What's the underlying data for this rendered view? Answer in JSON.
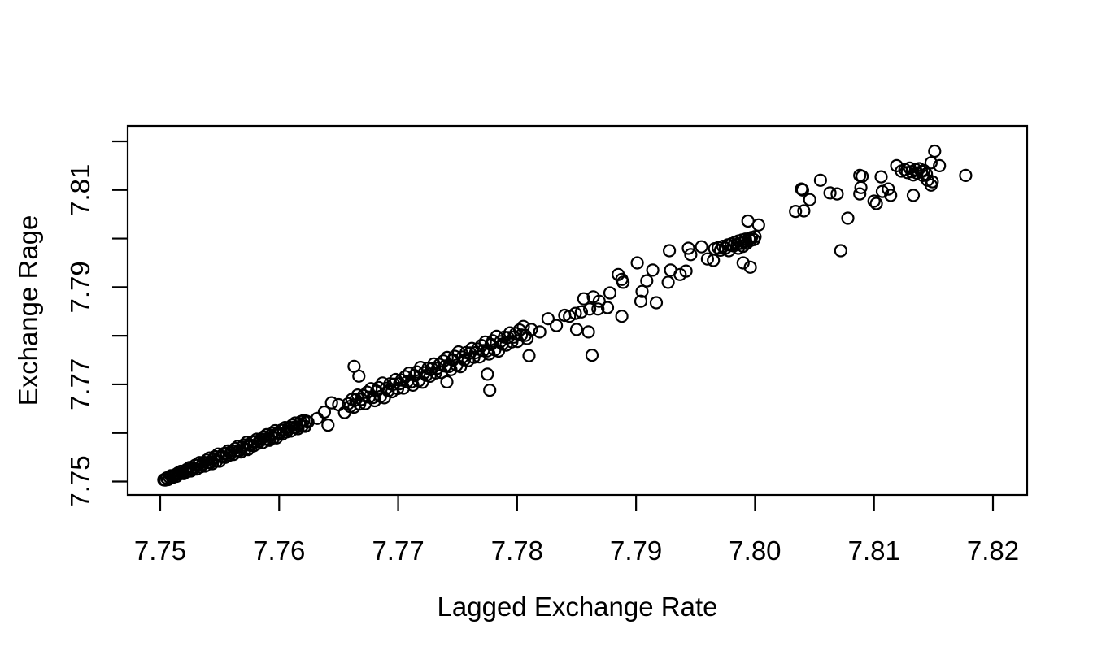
{
  "figure": {
    "background": "#ffffff",
    "foreground": "#000000"
  },
  "chart_data": {
    "type": "scatter",
    "title": "",
    "xlabel": "Lagged Exchange Rate",
    "ylabel": "Exchange Rage",
    "x_ticks": [
      7.75,
      7.76,
      7.77,
      7.78,
      7.79,
      7.8,
      7.81,
      7.82
    ],
    "x_tick_labels": [
      "7.75",
      "7.76",
      "7.77",
      "7.78",
      "7.79",
      "7.80",
      "7.81",
      "7.82"
    ],
    "y_ticks": [
      7.75,
      7.76,
      7.77,
      7.78,
      7.79,
      7.8,
      7.81,
      7.82
    ],
    "y_tick_labels": [
      "7.75",
      "",
      "7.77",
      "",
      "7.79",
      "",
      "7.81",
      ""
    ],
    "xlim": [
      7.7473,
      7.8229
    ],
    "ylim": [
      7.7472,
      7.8232
    ],
    "grid": false,
    "legend": null,
    "marker": {
      "shape": "open-circle",
      "color": "#000000",
      "radius_px": 7,
      "stroke_px": 2.2
    },
    "points": [
      [
        7.7503,
        7.75035
      ],
      [
        7.75042,
        7.75032
      ],
      [
        7.75054,
        7.75074
      ],
      [
        7.75066,
        7.75041
      ],
      [
        7.75078,
        7.75088
      ],
      [
        7.7509,
        7.7512
      ],
      [
        7.75102,
        7.75082
      ],
      [
        7.75114,
        7.75114
      ],
      [
        7.75126,
        7.75141
      ],
      [
        7.75138,
        7.75108
      ],
      [
        7.7515,
        7.75175
      ],
      [
        7.75162,
        7.75157
      ],
      [
        7.75174,
        7.75209
      ],
      [
        7.75186,
        7.75171
      ],
      [
        7.75198,
        7.75163
      ],
      [
        7.7521,
        7.7522
      ],
      [
        7.75222,
        7.75247
      ],
      [
        7.75234,
        7.75209
      ],
      [
        7.75246,
        7.75286
      ],
      [
        7.75258,
        7.75218
      ],
      [
        7.7527,
        7.7528
      ],
      [
        7.75282,
        7.75262
      ],
      [
        7.75294,
        7.75334
      ],
      [
        7.75306,
        7.75256
      ],
      [
        7.75318,
        7.75338
      ],
      [
        7.7533,
        7.7539
      ],
      [
        7.75342,
        7.75302
      ],
      [
        7.75354,
        7.75354
      ],
      [
        7.75366,
        7.75396
      ],
      [
        7.75378,
        7.75318
      ],
      [
        7.7539,
        7.7544
      ],
      [
        7.75402,
        7.75392
      ],
      [
        7.75414,
        7.75484
      ],
      [
        7.75426,
        7.75396
      ],
      [
        7.75438,
        7.75368
      ],
      [
        7.7545,
        7.7547
      ],
      [
        7.75462,
        7.75512
      ],
      [
        7.75474,
        7.75424
      ],
      [
        7.75486,
        7.75566
      ],
      [
        7.75498,
        7.75418
      ],
      [
        7.7551,
        7.7552
      ],
      [
        7.75522,
        7.75502
      ],
      [
        7.75534,
        7.75574
      ],
      [
        7.75546,
        7.75496
      ],
      [
        7.75558,
        7.75578
      ],
      [
        7.7557,
        7.7563
      ],
      [
        7.75582,
        7.75542
      ],
      [
        7.75594,
        7.75594
      ],
      [
        7.75606,
        7.75636
      ],
      [
        7.75618,
        7.75558
      ],
      [
        7.7563,
        7.7568
      ],
      [
        7.75642,
        7.75632
      ],
      [
        7.75654,
        7.75724
      ],
      [
        7.75666,
        7.75636
      ],
      [
        7.75678,
        7.75608
      ],
      [
        7.7569,
        7.7571
      ],
      [
        7.75702,
        7.75752
      ],
      [
        7.75714,
        7.75664
      ],
      [
        7.75726,
        7.75806
      ],
      [
        7.75738,
        7.75658
      ],
      [
        7.7575,
        7.7576
      ],
      [
        7.75762,
        7.75742
      ],
      [
        7.75774,
        7.75814
      ],
      [
        7.75786,
        7.75736
      ],
      [
        7.75798,
        7.75818
      ],
      [
        7.7581,
        7.7587
      ],
      [
        7.75822,
        7.75782
      ],
      [
        7.75834,
        7.75834
      ],
      [
        7.75846,
        7.75876
      ],
      [
        7.75858,
        7.75798
      ],
      [
        7.7587,
        7.7592
      ],
      [
        7.75882,
        7.75872
      ],
      [
        7.75894,
        7.75964
      ],
      [
        7.75906,
        7.75876
      ],
      [
        7.75918,
        7.75848
      ],
      [
        7.7593,
        7.7595
      ],
      [
        7.75942,
        7.75992
      ],
      [
        7.75954,
        7.75904
      ],
      [
        7.75966,
        7.76046
      ],
      [
        7.75978,
        7.75898
      ],
      [
        7.7599,
        7.76
      ],
      [
        7.76002,
        7.75982
      ],
      [
        7.76014,
        7.76054
      ],
      [
        7.76026,
        7.75976
      ],
      [
        7.76038,
        7.76058
      ],
      [
        7.7605,
        7.7611
      ],
      [
        7.76062,
        7.76022
      ],
      [
        7.76074,
        7.76074
      ],
      [
        7.76086,
        7.76116
      ],
      [
        7.76098,
        7.76038
      ],
      [
        7.7611,
        7.7616
      ],
      [
        7.76122,
        7.76112
      ],
      [
        7.76134,
        7.76204
      ],
      [
        7.76146,
        7.76116
      ],
      [
        7.76158,
        7.76088
      ],
      [
        7.7617,
        7.7619
      ],
      [
        7.76182,
        7.76232
      ],
      [
        7.76194,
        7.76144
      ],
      [
        7.76206,
        7.76256
      ],
      [
        7.76218,
        7.76138
      ],
      [
        7.7623,
        7.7624
      ],
      [
        7.76242,
        7.76222
      ],
      [
        7.7632,
        7.763
      ],
      [
        7.7638,
        7.7643
      ],
      [
        7.7641,
        7.7616
      ],
      [
        7.7644,
        7.7662
      ],
      [
        7.765,
        7.7658
      ],
      [
        7.7655,
        7.7642
      ],
      [
        7.7658,
        7.766
      ],
      [
        7.76596,
        7.76546
      ],
      [
        7.76612,
        7.76692
      ],
      [
        7.76628,
        7.76528
      ],
      [
        7.76644,
        7.76684
      ],
      [
        7.7666,
        7.7678
      ],
      [
        7.76676,
        7.76596
      ],
      [
        7.76692,
        7.76692
      ],
      [
        7.76708,
        7.76768
      ],
      [
        7.76724,
        7.76604
      ],
      [
        7.7674,
        7.7684
      ],
      [
        7.76756,
        7.76736
      ],
      [
        7.76772,
        7.76912
      ],
      [
        7.76788,
        7.76728
      ],
      [
        7.76804,
        7.76664
      ],
      [
        7.7682,
        7.7686
      ],
      [
        7.76836,
        7.76936
      ],
      [
        7.76852,
        7.76752
      ],
      [
        7.76868,
        7.77028
      ],
      [
        7.76884,
        7.76724
      ],
      [
        7.769,
        7.7692
      ],
      [
        7.76916,
        7.76866
      ],
      [
        7.76932,
        7.77012
      ],
      [
        7.76948,
        7.76848
      ],
      [
        7.76964,
        7.77004
      ],
      [
        7.7698,
        7.771
      ],
      [
        7.76996,
        7.76916
      ],
      [
        7.77012,
        7.77012
      ],
      [
        7.77028,
        7.77088
      ],
      [
        7.77044,
        7.76924
      ],
      [
        7.7706,
        7.7716
      ],
      [
        7.77076,
        7.77056
      ],
      [
        7.77092,
        7.77232
      ],
      [
        7.77108,
        7.77048
      ],
      [
        7.77124,
        7.76984
      ],
      [
        7.7714,
        7.7718
      ],
      [
        7.77156,
        7.77256
      ],
      [
        7.77172,
        7.77072
      ],
      [
        7.77188,
        7.77348
      ],
      [
        7.77204,
        7.77044
      ],
      [
        7.7722,
        7.7724
      ],
      [
        7.77236,
        7.77186
      ],
      [
        7.77252,
        7.77332
      ],
      [
        7.77268,
        7.77168
      ],
      [
        7.77284,
        7.77324
      ],
      [
        7.773,
        7.7742
      ],
      [
        7.77316,
        7.77236
      ],
      [
        7.77332,
        7.77332
      ],
      [
        7.77348,
        7.77408
      ],
      [
        7.77364,
        7.77244
      ],
      [
        7.7738,
        7.7748
      ],
      [
        7.77396,
        7.77376
      ],
      [
        7.77412,
        7.77552
      ],
      [
        7.77428,
        7.77368
      ],
      [
        7.77444,
        7.77304
      ],
      [
        7.7746,
        7.775
      ],
      [
        7.77476,
        7.77576
      ],
      [
        7.77492,
        7.77392
      ],
      [
        7.77508,
        7.77668
      ],
      [
        7.77524,
        7.77364
      ],
      [
        7.7754,
        7.7756
      ],
      [
        7.77556,
        7.77506
      ],
      [
        7.77572,
        7.77652
      ],
      [
        7.77588,
        7.77488
      ],
      [
        7.77604,
        7.77644
      ],
      [
        7.7762,
        7.7774
      ],
      [
        7.77636,
        7.77556
      ],
      [
        7.77652,
        7.77652
      ],
      [
        7.77668,
        7.77728
      ],
      [
        7.77684,
        7.77564
      ],
      [
        7.777,
        7.778
      ],
      [
        7.77716,
        7.77696
      ],
      [
        7.77732,
        7.77872
      ],
      [
        7.77748,
        7.77688
      ],
      [
        7.77764,
        7.77624
      ],
      [
        7.7778,
        7.7782
      ],
      [
        7.77796,
        7.77896
      ],
      [
        7.77812,
        7.77712
      ],
      [
        7.77828,
        7.77988
      ],
      [
        7.77844,
        7.77684
      ],
      [
        7.7786,
        7.7788
      ],
      [
        7.77876,
        7.77826
      ],
      [
        7.77892,
        7.77972
      ],
      [
        7.77908,
        7.77808
      ],
      [
        7.77924,
        7.77964
      ],
      [
        7.7794,
        7.7806
      ],
      [
        7.77956,
        7.77876
      ],
      [
        7.77972,
        7.77972
      ],
      [
        7.77988,
        7.78048
      ],
      [
        7.78004,
        7.77884
      ],
      [
        7.7802,
        7.7812
      ],
      [
        7.78036,
        7.78016
      ],
      [
        7.78052,
        7.78192
      ],
      [
        7.78068,
        7.78008
      ],
      [
        7.78084,
        7.77944
      ],
      [
        7.7663,
        7.7737
      ],
      [
        7.7667,
        7.7717
      ],
      [
        7.7775,
        7.7721
      ],
      [
        7.7777,
        7.7688
      ],
      [
        7.7741,
        7.7705
      ],
      [
        7.7812,
        7.7813
      ],
      [
        7.7819,
        7.7808
      ],
      [
        7.781,
        7.7759
      ],
      [
        7.7826,
        7.7835
      ],
      [
        7.7833,
        7.7821
      ],
      [
        7.784,
        7.7842
      ],
      [
        7.7844,
        7.784
      ],
      [
        7.7849,
        7.7846
      ],
      [
        7.7854,
        7.7849
      ],
      [
        7.7856,
        7.7876
      ],
      [
        7.7861,
        7.7855
      ],
      [
        7.7863,
        7.776
      ],
      [
        7.7864,
        7.788
      ],
      [
        7.7868,
        7.7855
      ],
      [
        7.7869,
        7.7871
      ],
      [
        7.7876,
        7.7858
      ],
      [
        7.7878,
        7.7888
      ],
      [
        7.785,
        7.7813
      ],
      [
        7.786,
        7.7808
      ],
      [
        7.7885,
        7.7926
      ],
      [
        7.7888,
        7.7916
      ],
      [
        7.7889,
        7.791
      ],
      [
        7.7888,
        7.784
      ],
      [
        7.7901,
        7.795
      ],
      [
        7.7905,
        7.7891
      ],
      [
        7.7904,
        7.7871
      ],
      [
        7.7909,
        7.7913
      ],
      [
        7.7914,
        7.7935
      ],
      [
        7.7917,
        7.7868
      ],
      [
        7.7928,
        7.7975
      ],
      [
        7.7929,
        7.7935
      ],
      [
        7.7927,
        7.791
      ],
      [
        7.7937,
        7.7926
      ],
      [
        7.7942,
        7.7933
      ],
      [
        7.7944,
        7.798
      ],
      [
        7.7946,
        7.7967
      ],
      [
        7.7955,
        7.7983
      ],
      [
        7.796,
        7.7958
      ],
      [
        7.7965,
        7.7955
      ],
      [
        7.799,
        7.795
      ],
      [
        7.7996,
        7.7941
      ],
      [
        7.7966,
        7.7979
      ],
      [
        7.7969,
        7.7981
      ],
      [
        7.7971,
        7.7976
      ],
      [
        7.7973,
        7.7984
      ],
      [
        7.7975,
        7.798
      ],
      [
        7.7977,
        7.7987
      ],
      [
        7.7978,
        7.7975
      ],
      [
        7.798,
        7.7989
      ],
      [
        7.7982,
        7.7985
      ],
      [
        7.7983,
        7.7992
      ],
      [
        7.7985,
        7.7988
      ],
      [
        7.7986,
        7.7995
      ],
      [
        7.7988,
        7.799
      ],
      [
        7.7989,
        7.7997
      ],
      [
        7.7991,
        7.7993
      ],
      [
        7.7992,
        7.7999
      ],
      [
        7.7993,
        7.799
      ],
      [
        7.7995,
        7.8
      ],
      [
        7.7996,
        7.7996
      ],
      [
        7.7997,
        7.8002
      ],
      [
        7.7999,
        7.7998
      ],
      [
        7.8,
        7.8004
      ],
      [
        7.799,
        7.7984
      ],
      [
        7.7986,
        7.798
      ],
      [
        7.7994,
        7.8036
      ],
      [
        7.8003,
        7.8028
      ],
      [
        7.8034,
        7.8056
      ],
      [
        7.8041,
        7.8057
      ],
      [
        7.8039,
        7.8102
      ],
      [
        7.804,
        7.81
      ],
      [
        7.8063,
        7.8094
      ],
      [
        7.8069,
        7.8092
      ],
      [
        7.8078,
        7.8042
      ],
      [
        7.8072,
        7.7975
      ],
      [
        7.8088,
        7.813
      ],
      [
        7.809,
        7.8128
      ],
      [
        7.8089,
        7.8105
      ],
      [
        7.8088,
        7.8092
      ],
      [
        7.8106,
        7.8127
      ],
      [
        7.8107,
        7.8097
      ],
      [
        7.81,
        7.8077
      ],
      [
        7.8102,
        7.8072
      ],
      [
        7.8112,
        7.8102
      ],
      [
        7.8114,
        7.8089
      ],
      [
        7.8119,
        7.815
      ],
      [
        7.8123,
        7.8139
      ],
      [
        7.8126,
        7.8142
      ],
      [
        7.8128,
        7.8136
      ],
      [
        7.813,
        7.8145
      ],
      [
        7.8132,
        7.8138
      ],
      [
        7.8133,
        7.8131
      ],
      [
        7.8135,
        7.8142
      ],
      [
        7.8136,
        7.8135
      ],
      [
        7.8138,
        7.8144
      ],
      [
        7.814,
        7.8138
      ],
      [
        7.8141,
        7.813
      ],
      [
        7.8142,
        7.814
      ],
      [
        7.8144,
        7.8133
      ],
      [
        7.8133,
        7.8089
      ],
      [
        7.8145,
        7.812
      ],
      [
        7.8148,
        7.811
      ],
      [
        7.8149,
        7.8117
      ],
      [
        7.8151,
        7.818
      ],
      [
        7.8148,
        7.8156
      ],
      [
        7.8155,
        7.815
      ],
      [
        7.8177,
        7.813
      ],
      [
        7.8046,
        7.808
      ],
      [
        7.8055,
        7.812
      ]
    ]
  }
}
